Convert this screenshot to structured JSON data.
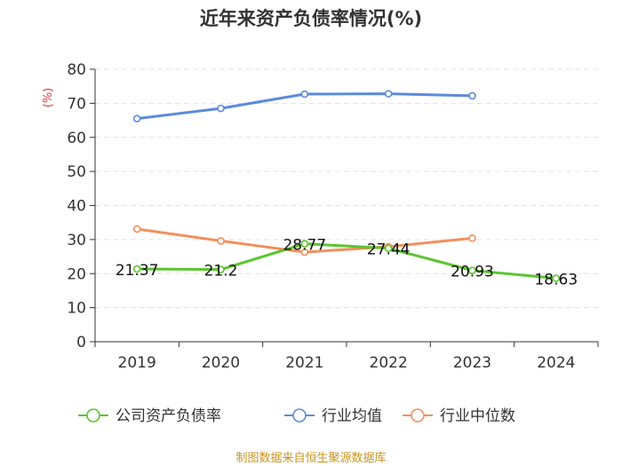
{
  "chart_data": {
    "type": "line",
    "title": "近年来资产负债率情况(%)",
    "ylabel": "(%)",
    "xlabel": "",
    "categories": [
      "2019",
      "2020",
      "2021",
      "2022",
      "2023",
      "2024"
    ],
    "ylim": [
      0,
      80
    ],
    "yticks": [
      0,
      10,
      20,
      30,
      40,
      50,
      60,
      70,
      80
    ],
    "series": [
      {
        "name": "公司资产负债率",
        "color": "#5ac52e",
        "values": [
          21.37,
          21.2,
          28.77,
          27.44,
          20.93,
          18.63
        ],
        "labels": [
          "21.37",
          "21.2",
          "28.77",
          "27.44",
          "20.93",
          "18.63"
        ]
      },
      {
        "name": "行业均值",
        "color": "#5b8bdb",
        "values": [
          65.5,
          68.5,
          72.7,
          72.8,
          72.2,
          null
        ]
      },
      {
        "name": "行业中位数",
        "color": "#f28f5c",
        "values": [
          33.1,
          29.6,
          26.3,
          27.9,
          30.4,
          null
        ]
      }
    ],
    "grid": "horizontal-dashed",
    "legend_position": "bottom"
  },
  "source": "制图数据来自恒生聚源数据库"
}
